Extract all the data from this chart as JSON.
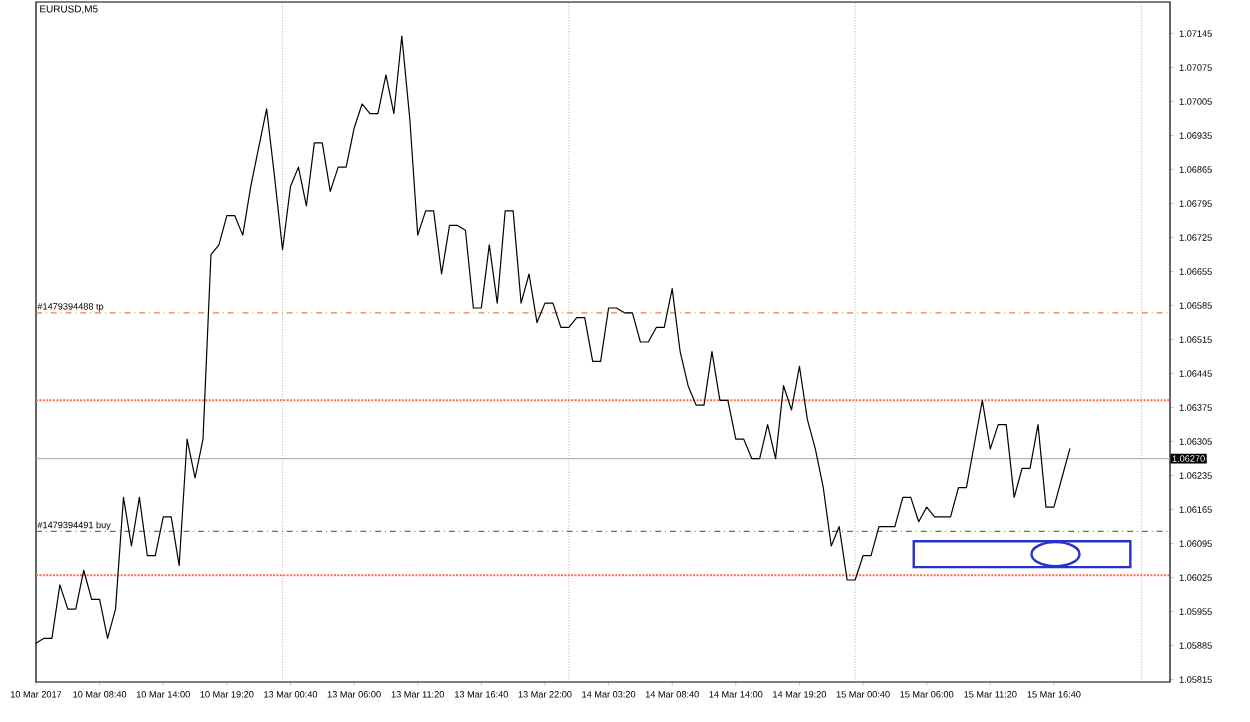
{
  "chart_data": {
    "type": "line",
    "title": "EURUSD,M5",
    "color": "#000000",
    "categories": [
      "10 Mar 2017",
      null,
      null,
      null,
      null,
      null,
      null,
      null,
      "10 Mar 08:40",
      null,
      null,
      null,
      null,
      null,
      null,
      null,
      "10 Mar 14:00",
      null,
      null,
      null,
      null,
      null,
      null,
      null,
      "10 Mar 19:20",
      null,
      null,
      null,
      null,
      null,
      null,
      null,
      "13 Mar 00:40",
      null,
      null,
      null,
      null,
      null,
      null,
      null,
      "13 Mar 06:00",
      null,
      null,
      null,
      null,
      null,
      null,
      null,
      "13 Mar 11:20",
      null,
      null,
      null,
      null,
      null,
      null,
      null,
      "13 Mar 16:40",
      null,
      null,
      null,
      null,
      null,
      null,
      null,
      "13 Mar 22:00",
      null,
      null,
      null,
      null,
      null,
      null,
      null,
      "14 Mar 03:20",
      null,
      null,
      null,
      null,
      null,
      null,
      null,
      "14 Mar 08:40",
      null,
      null,
      null,
      null,
      null,
      null,
      null,
      "14 Mar 14:00",
      null,
      null,
      null,
      null,
      null,
      null,
      null,
      "14 Mar 19:20",
      null,
      null,
      null,
      null,
      null,
      null,
      null,
      "15 Mar 00:40",
      null,
      null,
      null,
      null,
      null,
      null,
      null,
      "15 Mar 06:00",
      null,
      null,
      null,
      null,
      null,
      null,
      null,
      "15 Mar 11:20",
      null,
      null,
      null,
      null,
      null,
      null,
      null,
      "15 Mar 16:40",
      null,
      null,
      null,
      null,
      null,
      null,
      null,
      null,
      null,
      null,
      null,
      null,
      null,
      null
    ],
    "values": [
      1.0589,
      1.059,
      1.059,
      1.0601,
      1.0596,
      1.0596,
      1.0604,
      1.0598,
      1.0598,
      1.059,
      1.0596,
      1.0619,
      1.0609,
      1.0619,
      1.0607,
      1.0607,
      1.0615,
      1.0615,
      1.0605,
      1.0631,
      1.0623,
      1.0631,
      1.0669,
      1.0671,
      1.0677,
      1.0677,
      1.0673,
      1.0683,
      1.0691,
      1.0699,
      1.0685,
      1.067,
      1.0683,
      1.0687,
      1.0679,
      1.0692,
      1.0692,
      1.0682,
      1.0687,
      1.0687,
      1.0695,
      1.07,
      1.0698,
      1.0698,
      1.0706,
      1.0698,
      1.0714,
      1.0697,
      1.0673,
      1.0678,
      1.0678,
      1.0665,
      1.0675,
      1.0675,
      1.0674,
      1.0658,
      1.0658,
      1.0671,
      1.0659,
      1.0678,
      1.0678,
      1.0659,
      1.0665,
      1.0655,
      1.0659,
      1.0659,
      1.0654,
      1.0654,
      1.0656,
      1.0656,
      1.0647,
      1.0647,
      1.0658,
      1.0658,
      1.0657,
      1.0657,
      1.0651,
      1.0651,
      1.0654,
      1.0654,
      1.0662,
      1.0649,
      1.0642,
      1.0638,
      1.0638,
      1.0649,
      1.0639,
      1.0639,
      1.0631,
      1.0631,
      1.0627,
      1.0627,
      1.0634,
      1.0627,
      1.0642,
      1.0637,
      1.0646,
      1.0635,
      1.0629,
      1.0621,
      1.0609,
      1.0613,
      1.0602,
      1.0602,
      1.0607,
      1.0607,
      1.0613,
      1.0613,
      1.0613,
      1.0619,
      1.0619,
      1.0614,
      1.0617,
      1.0615,
      1.0615,
      1.0615,
      1.0621,
      1.0621,
      1.063,
      1.0639,
      1.0629,
      1.0634,
      1.0634,
      1.0619,
      1.0625,
      1.0625,
      1.0634,
      1.0617,
      1.0617,
      1.0623,
      1.0629,
      null,
      null,
      null,
      null,
      null,
      null,
      null,
      null,
      null,
      null,
      null,
      null
    ],
    "ylim": [
      1.0581,
      1.0721
    ],
    "yticks": [
      {
        "value": 1.07145,
        "label": "1.07145"
      },
      {
        "value": 1.07075,
        "label": "1.07075"
      },
      {
        "value": 1.07005,
        "label": "1.07005"
      },
      {
        "value": 1.06935,
        "label": "1.06935"
      },
      {
        "value": 1.06865,
        "label": "1.06865"
      },
      {
        "value": 1.06795,
        "label": "1.06795"
      },
      {
        "value": 1.06725,
        "label": "1.06725"
      },
      {
        "value": 1.06655,
        "label": "1.06655"
      },
      {
        "value": 1.06585,
        "label": "1.06585"
      },
      {
        "value": 1.06515,
        "label": "1.06515"
      },
      {
        "value": 1.06445,
        "label": "1.06445"
      },
      {
        "value": 1.06375,
        "label": "1.06375"
      },
      {
        "value": 1.06305,
        "label": "1.06305"
      },
      {
        "value": 1.06235,
        "label": "1.06235"
      },
      {
        "value": 1.06165,
        "label": "1.06165"
      },
      {
        "value": 1.06095,
        "label": "1.06095"
      },
      {
        "value": 1.06025,
        "label": "1.06025"
      },
      {
        "value": 1.05955,
        "label": "1.05955"
      },
      {
        "value": 1.05885,
        "label": "1.05885"
      },
      {
        "value": 1.05815,
        "label": "1.05815"
      }
    ],
    "ref_lines": [
      {
        "axis": "y",
        "value": 1.0657,
        "label": "#1479394488 tp",
        "color": "#f47a4a",
        "line_style": "dashed"
      },
      {
        "axis": "y",
        "value": 1.0612,
        "label": "#1479394491 buy",
        "color": "#22a022",
        "line_style": "dashed"
      },
      {
        "axis": "y",
        "value": 1.0627,
        "label": "1.06270",
        "color": "#b4b4b4",
        "line_style": "solid"
      },
      {
        "axis": "y",
        "value": 1.0639,
        "color": "#ff6a3d",
        "line_style": "dotted"
      },
      {
        "axis": "y",
        "value": 1.0603,
        "color": "#ff6a3d",
        "line_style": "dotted"
      }
    ]
  }
}
